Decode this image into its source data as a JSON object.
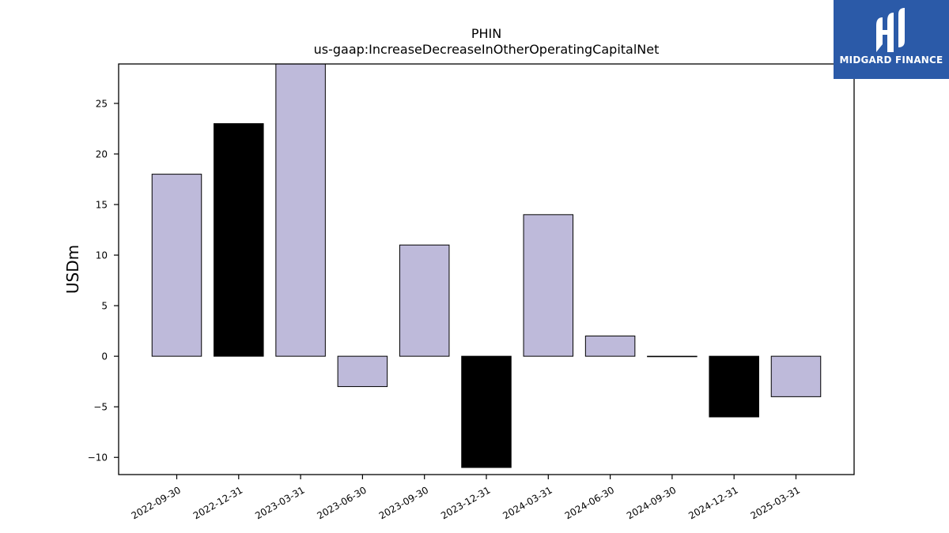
{
  "chart_data": {
    "type": "bar",
    "title": "PHIN",
    "subtitle": "us-gaap:IncreaseDecreaseInOtherOperatingCapitalNet",
    "xlabel": "",
    "ylabel": "USDm",
    "ylim": [
      -11.7,
      28.9
    ],
    "yticks": [
      -10,
      -5,
      0,
      5,
      10,
      15,
      20,
      25
    ],
    "categories": [
      "2022-09-30",
      "2022-12-31",
      "2023-03-31",
      "2023-06-30",
      "2023-09-30",
      "2023-12-31",
      "2024-03-31",
      "2024-06-30",
      "2024-09-30",
      "2024-12-31",
      "2025-03-31"
    ],
    "values": [
      18,
      23,
      29,
      -3,
      11,
      -11,
      14,
      2,
      0,
      -6,
      -4
    ],
    "bar_colors": [
      "#bebada",
      "#000000",
      "#bebada",
      "#bebada",
      "#bebada",
      "#000000",
      "#bebada",
      "#bebada",
      "#bebada",
      "#000000",
      "#bebada"
    ],
    "grid": false,
    "legend": "none"
  },
  "logo": {
    "text": "MIDGARD FINANCE",
    "background": "#2b5aa8"
  }
}
